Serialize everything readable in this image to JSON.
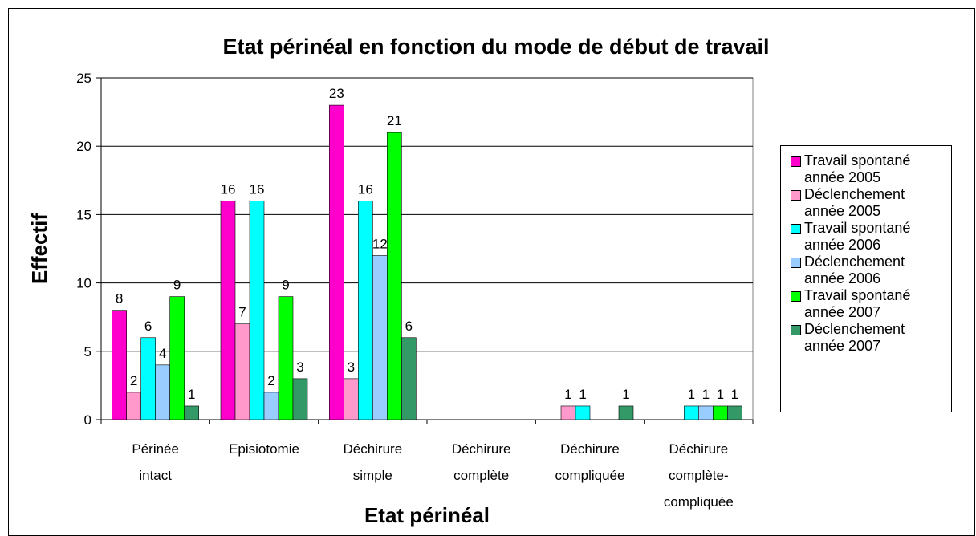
{
  "chart_data": {
    "type": "bar",
    "title": "Etat périnéal en fonction du mode de début de travail",
    "x_label": "Etat périnéal",
    "y_label": "Effectif",
    "categories": [
      [
        "Périnée",
        "intact"
      ],
      [
        "Episiotomie"
      ],
      [
        "Déchirure",
        "simple"
      ],
      [
        "Déchirure",
        "complète"
      ],
      [
        "Déchirure",
        "compliquée"
      ],
      [
        "Déchirure",
        "complète-",
        "compliquée"
      ]
    ],
    "series": [
      {
        "name": "Travail spontané année 2005",
        "color": "#ff00cc",
        "values": [
          8,
          16,
          23,
          0,
          0,
          0
        ]
      },
      {
        "name": "Déclenchement année 2005",
        "color": "#ff99cc",
        "values": [
          2,
          7,
          3,
          0,
          1,
          0
        ]
      },
      {
        "name": "Travail spontané année 2006",
        "color": "#00ffff",
        "values": [
          6,
          16,
          16,
          0,
          1,
          1
        ]
      },
      {
        "name": "Déclenchement année 2006",
        "color": "#99ccff",
        "values": [
          4,
          2,
          12,
          0,
          0,
          1
        ]
      },
      {
        "name": "Travail spontané année 2007",
        "color": "#00ff00",
        "values": [
          9,
          9,
          21,
          0,
          0,
          1
        ]
      },
      {
        "name": "Déclenchement année 2007",
        "color": "#339966",
        "values": [
          1,
          3,
          6,
          0,
          1,
          1
        ]
      }
    ],
    "ylim": [
      0,
      25
    ],
    "yticks": [
      0,
      5,
      10,
      15,
      20,
      25
    ],
    "grid": true,
    "legend": "right"
  }
}
